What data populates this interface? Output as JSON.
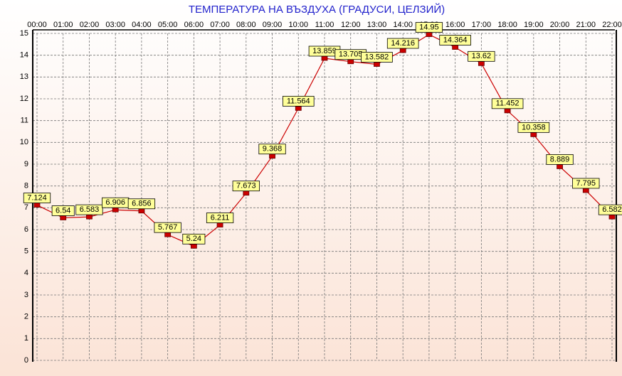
{
  "chart_data": {
    "type": "line",
    "title": "ТЕМПЕРАТУРА НА ВЪЗДУХА  (ГРАДУСИ, ЦЕЛЗИЙ)",
    "categories": [
      "00:00",
      "01:00",
      "02:00",
      "03:00",
      "04:00",
      "05:00",
      "06:00",
      "07:00",
      "08:00",
      "09:00",
      "10:00",
      "11:00",
      "12:00",
      "13:00",
      "14:00",
      "15:00",
      "16:00",
      "17:00",
      "18:00",
      "19:00",
      "20:00",
      "21:00",
      "22:00"
    ],
    "series": [
      {
        "name": "Temperature",
        "color": "#cc0000",
        "values": [
          7.124,
          6.54,
          6.583,
          6.906,
          6.856,
          5.767,
          5.24,
          6.211,
          7.673,
          9.368,
          11.564,
          13.859,
          13.705,
          13.582,
          14.216,
          14.95,
          14.364,
          13.62,
          11.452,
          10.358,
          8.889,
          7.795,
          6.582
        ]
      }
    ],
    "ylim": [
      0,
      15
    ],
    "yticks": [
      0,
      1,
      2,
      3,
      4,
      5,
      6,
      7,
      8,
      9,
      10,
      11,
      12,
      13,
      14,
      15
    ],
    "grid": true
  }
}
